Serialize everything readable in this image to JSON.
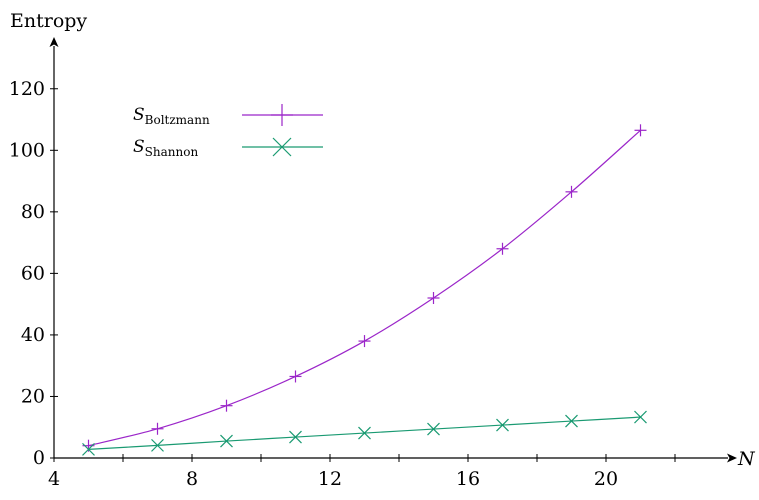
{
  "chart_data": {
    "type": "line",
    "ylabel": "Entropy",
    "xlabel": "N",
    "xlim": [
      4,
      24
    ],
    "ylim": [
      0,
      130
    ],
    "grid": false,
    "legend_position": "top-left",
    "x_ticks": [
      4,
      6,
      8,
      10,
      12,
      14,
      16,
      18,
      20,
      22
    ],
    "x_tick_labels": [
      {
        "value": 4,
        "label": "4"
      },
      {
        "value": 8,
        "label": "8"
      },
      {
        "value": 12,
        "label": "12"
      },
      {
        "value": 16,
        "label": "16"
      },
      {
        "value": 20,
        "label": "20"
      }
    ],
    "y_ticks": [
      0,
      20,
      40,
      60,
      80,
      100,
      120
    ],
    "y_tick_labels": [
      {
        "value": 0,
        "label": "0"
      },
      {
        "value": 20,
        "label": "20"
      },
      {
        "value": 40,
        "label": "40"
      },
      {
        "value": 60,
        "label": "60"
      },
      {
        "value": 80,
        "label": "80"
      },
      {
        "value": 100,
        "label": "100"
      },
      {
        "value": 120,
        "label": "120"
      }
    ],
    "x": [
      5,
      7,
      9,
      11,
      13,
      15,
      17,
      19,
      21
    ],
    "series": [
      {
        "name": "S_Boltzmann",
        "legend_main": "S",
        "legend_sub": "Boltzmann",
        "color": "#9b26c9",
        "marker": "plus",
        "values": [
          4,
          9.5,
          17,
          26.5,
          38,
          52,
          68,
          86.5,
          106.5
        ]
      },
      {
        "name": "S_Shannon",
        "legend_main": "S",
        "legend_sub": "Shannon",
        "color": "#1a9a72",
        "marker": "x",
        "values": [
          2.8,
          4.1,
          5.5,
          6.8,
          8.1,
          9.4,
          10.7,
          12.0,
          13.3
        ]
      }
    ]
  }
}
